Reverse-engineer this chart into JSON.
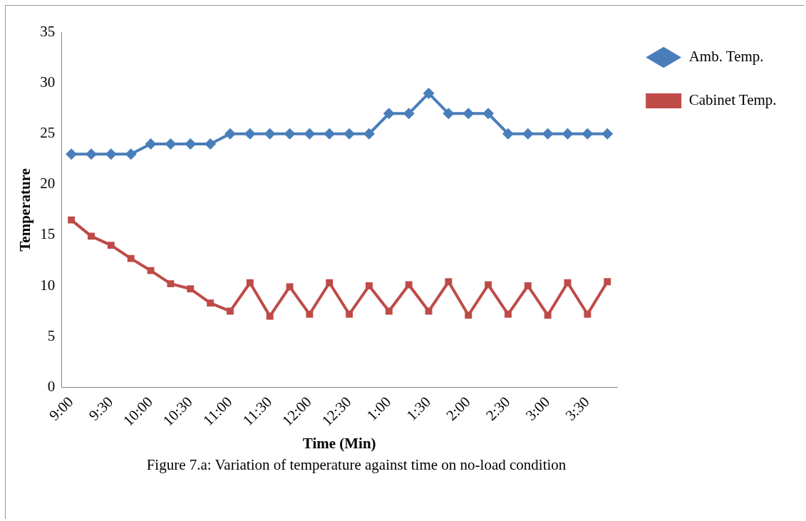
{
  "chart_data": {
    "type": "line",
    "categories": [
      "9:00",
      null,
      "9:30",
      null,
      "10:00",
      null,
      "10:30",
      null,
      "11:00",
      null,
      "11:30",
      null,
      "12:00",
      null,
      "12:30",
      null,
      "1:00",
      null,
      "1:30",
      null,
      "2:00",
      null,
      "2:30",
      null,
      "3:00",
      null,
      "3:30",
      null
    ],
    "series": [
      {
        "name": "Amb. Temp.",
        "color": "#4a7ebb",
        "marker": "diamond",
        "values": [
          23,
          23,
          23,
          23,
          24,
          24,
          24,
          24,
          25,
          25,
          25,
          25,
          25,
          25,
          25,
          25,
          27,
          27,
          29,
          27,
          27,
          27,
          25,
          25,
          25,
          25,
          25,
          25
        ]
      },
      {
        "name": "Cabinet Temp.",
        "color": "#be4b48",
        "marker": "square",
        "values": [
          16.5,
          14.9,
          14.0,
          12.7,
          11.5,
          10.2,
          9.7,
          8.3,
          7.5,
          10.3,
          7.0,
          9.9,
          7.2,
          10.3,
          7.2,
          10.0,
          7.5,
          10.1,
          7.5,
          10.4,
          7.1,
          10.1,
          7.2,
          10.0,
          7.1,
          10.3,
          7.2,
          10.4
        ]
      }
    ],
    "xlabel": "Time (Min)",
    "ylabel": "Temperature",
    "ylim": [
      0,
      35
    ],
    "yticks": [
      0,
      5,
      10,
      15,
      20,
      25,
      30,
      35
    ],
    "grid": false,
    "legend": "top right",
    "line_style": "solid",
    "annotations": [
      "Figure 7.a: Variation of temperature against time on no-load condition"
    ]
  }
}
